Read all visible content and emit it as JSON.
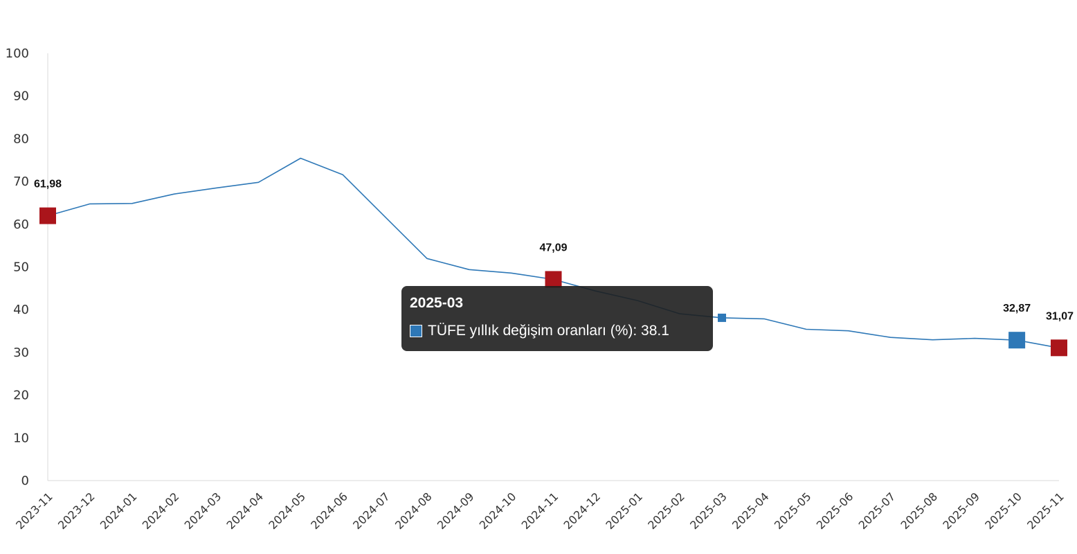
{
  "colors": {
    "line": "#2e78b7",
    "highlight_red": "#aa151b",
    "highlight_blue": "#2e78b7",
    "axis": "#d9d9d9"
  },
  "chart_data": {
    "type": "line",
    "categories": [
      "2023-11",
      "2023-12",
      "2024-01",
      "2024-02",
      "2024-03",
      "2024-04",
      "2024-05",
      "2024-06",
      "2024-07",
      "2024-08",
      "2024-09",
      "2024-10",
      "2024-11",
      "2024-12",
      "2025-01",
      "2025-02",
      "2025-03",
      "2025-04",
      "2025-05",
      "2025-06",
      "2025-07",
      "2025-08",
      "2025-09",
      "2025-10",
      "2025-11"
    ],
    "series": [
      {
        "name": "TÜFE yıllık değişim oranları (%)",
        "values": [
          61.98,
          64.77,
          64.86,
          67.07,
          68.5,
          69.8,
          75.45,
          71.6,
          61.78,
          51.97,
          49.38,
          48.58,
          47.09,
          44.38,
          42.12,
          39.05,
          38.1,
          37.86,
          35.41,
          35.05,
          33.52,
          32.95,
          33.29,
          32.87,
          31.07
        ]
      }
    ],
    "ylim": [
      0,
      100
    ],
    "yticks": [
      0,
      10,
      20,
      30,
      40,
      50,
      60,
      70,
      80,
      90,
      100
    ],
    "grid": false,
    "highlights": [
      {
        "category": "2023-11",
        "label": "61,98",
        "color": "#aa151b"
      },
      {
        "category": "2024-11",
        "label": "47,09",
        "color": "#aa151b"
      },
      {
        "category": "2025-10",
        "label": "32,87",
        "color": "#2e78b7"
      },
      {
        "category": "2025-11",
        "label": "31,07",
        "color": "#aa151b"
      }
    ],
    "hover_point": "2025-03"
  },
  "tooltip": {
    "title": "2025-03",
    "series_name": "TÜFE yıllık değişim oranları (%)",
    "value": "38.1",
    "text": "TÜFE yıllık değişim oranları (%): 38.1"
  }
}
